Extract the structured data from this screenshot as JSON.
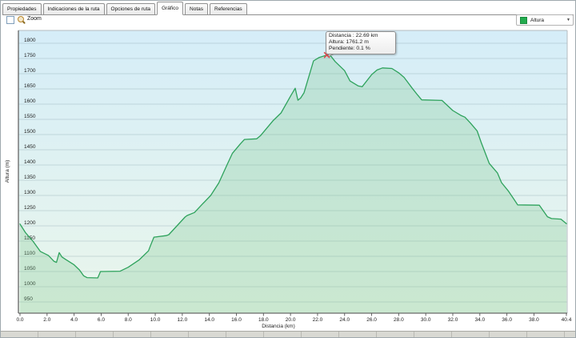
{
  "tabs": {
    "items": [
      {
        "label": "Propiedades",
        "active": false
      },
      {
        "label": "Indicaciones de la ruta",
        "active": false
      },
      {
        "label": "Opciones de ruta",
        "active": false
      },
      {
        "label": "Gráfico",
        "active": true
      },
      {
        "label": "Notas",
        "active": false
      },
      {
        "label": "Referencias",
        "active": false
      }
    ]
  },
  "toolbar": {
    "zoom_label": "Zoom",
    "zoom_checked": false
  },
  "legend": {
    "label": "Altura",
    "swatch_color": "#22ac4e"
  },
  "tooltip": {
    "lines": [
      "Distancia : 22.69 km",
      "Altura: 1761.2 m",
      "Pendiente: 0.1 %"
    ]
  },
  "chart_data": {
    "type": "area",
    "title": "",
    "xlabel": "Distancia  (km)",
    "ylabel": "Altura (m)",
    "xlim": [
      0,
      40.4
    ],
    "ylim": [
      950,
      1800
    ],
    "grid": true,
    "legend_position": "top-right",
    "x_ticks": [
      0,
      2,
      4,
      6,
      8,
      10,
      12,
      14,
      16,
      18,
      20,
      22,
      24,
      26,
      28,
      30,
      32,
      34,
      36,
      38,
      40.4
    ],
    "y_ticks": [
      950,
      1000,
      1050,
      1100,
      1150,
      1200,
      1250,
      1300,
      1350,
      1400,
      1450,
      1500,
      1550,
      1600,
      1650,
      1700,
      1750,
      1800
    ],
    "colors": {
      "line": "#2ea25c",
      "area_fill": "rgba(120,195,135,0.27)",
      "grid": "rgba(125,150,160,0.40)",
      "bg_top": "#d5edf8",
      "bg_bottom": "#eaf6eb",
      "axis": "#6a6a6a",
      "marker": "#e4484f"
    },
    "series": [
      {
        "name": "Altura",
        "points": [
          [
            0,
            1206
          ],
          [
            0.4,
            1178
          ],
          [
            0.95,
            1150
          ],
          [
            1.5,
            1116
          ],
          [
            2.1,
            1103
          ],
          [
            2.5,
            1084
          ],
          [
            2.7,
            1080
          ],
          [
            2.9,
            1112
          ],
          [
            3.1,
            1098
          ],
          [
            3.4,
            1089
          ],
          [
            4.0,
            1072
          ],
          [
            4.4,
            1055
          ],
          [
            4.7,
            1036
          ],
          [
            4.95,
            1030
          ],
          [
            5.75,
            1029
          ],
          [
            5.95,
            1050
          ],
          [
            7.4,
            1051
          ],
          [
            8.0,
            1064
          ],
          [
            8.8,
            1088
          ],
          [
            9.5,
            1118
          ],
          [
            9.65,
            1135
          ],
          [
            9.9,
            1163
          ],
          [
            10.8,
            1168
          ],
          [
            11.0,
            1171
          ],
          [
            12.2,
            1229
          ],
          [
            12.35,
            1234
          ],
          [
            12.9,
            1244
          ],
          [
            13.5,
            1272
          ],
          [
            14.1,
            1300
          ],
          [
            14.7,
            1341
          ],
          [
            15.3,
            1400
          ],
          [
            15.7,
            1438
          ],
          [
            16.3,
            1470
          ],
          [
            16.6,
            1484
          ],
          [
            17.5,
            1486
          ],
          [
            17.8,
            1497
          ],
          [
            18.7,
            1545
          ],
          [
            19.3,
            1571
          ],
          [
            20.05,
            1630
          ],
          [
            20.35,
            1652
          ],
          [
            20.55,
            1613
          ],
          [
            20.75,
            1620
          ],
          [
            21.0,
            1637
          ],
          [
            21.7,
            1742
          ],
          [
            22.1,
            1753
          ],
          [
            22.69,
            1761.2
          ],
          [
            23.0,
            1757
          ],
          [
            23.3,
            1740
          ],
          [
            24.0,
            1710
          ],
          [
            24.4,
            1676
          ],
          [
            25.0,
            1660
          ],
          [
            25.3,
            1657
          ],
          [
            26.0,
            1697
          ],
          [
            26.4,
            1712
          ],
          [
            26.8,
            1719
          ],
          [
            27.5,
            1717
          ],
          [
            28.0,
            1703
          ],
          [
            28.4,
            1688
          ],
          [
            29.0,
            1652
          ],
          [
            29.4,
            1630
          ],
          [
            29.7,
            1614
          ],
          [
            31.2,
            1612
          ],
          [
            32.0,
            1579
          ],
          [
            32.6,
            1563
          ],
          [
            32.9,
            1557
          ],
          [
            33.3,
            1538
          ],
          [
            33.8,
            1512
          ],
          [
            34.1,
            1474
          ],
          [
            34.7,
            1405
          ],
          [
            35.3,
            1374
          ],
          [
            35.6,
            1342
          ],
          [
            36.1,
            1315
          ],
          [
            36.5,
            1289
          ],
          [
            36.8,
            1269
          ],
          [
            38.4,
            1268
          ],
          [
            39.0,
            1230
          ],
          [
            39.3,
            1224
          ],
          [
            40.0,
            1222
          ],
          [
            40.4,
            1207
          ]
        ]
      }
    ],
    "marker": {
      "x": 22.69,
      "y": 1761.2
    }
  }
}
